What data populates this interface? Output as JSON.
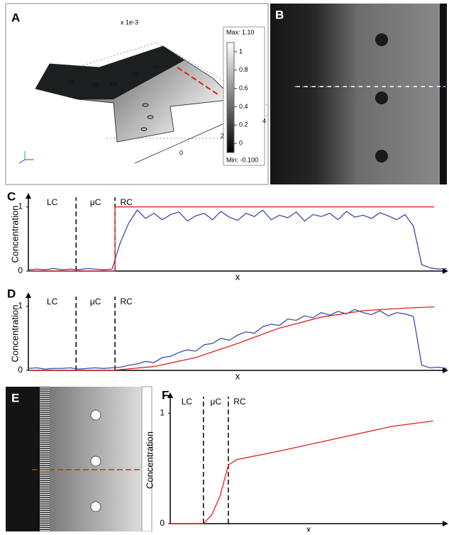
{
  "panel_a": {
    "label": "A",
    "scale_note": "x 1e-3",
    "max": "Max: 1.10",
    "min": "Min: -0.100",
    "colorbar_ticks": [
      1,
      0.8,
      0.6,
      0.4,
      0.2,
      0
    ],
    "axis_ticks": [
      0,
      2,
      4
    ]
  },
  "panel_b": {
    "label": "B"
  },
  "panel_e": {
    "label": "E"
  },
  "chart_data": [
    {
      "type": "line",
      "panel_label": "C",
      "ylabel": "Concentration",
      "xlabel": "x",
      "regions": [
        "LC",
        "μC",
        "RC"
      ],
      "boundaries": [
        11.4,
        20.7
      ],
      "xlim": [
        0,
        100
      ],
      "ylim": [
        0,
        1.15
      ],
      "yticks": [
        0,
        1
      ],
      "series": [
        {
          "color": "#3d4aa8",
          "x": [
            0,
            2,
            4,
            6,
            8,
            10,
            12,
            14,
            16,
            18,
            20,
            22,
            24,
            26,
            28,
            30,
            32,
            34,
            36,
            38,
            40,
            42,
            44,
            46,
            48,
            50,
            52,
            54,
            56,
            58,
            60,
            62,
            64,
            66,
            68,
            70,
            72,
            74,
            76,
            78,
            80,
            82,
            84,
            86,
            88,
            90,
            92,
            94,
            96,
            98,
            100
          ],
          "values": [
            0.02,
            0.03,
            0.02,
            0.04,
            0.02,
            0.03,
            0.02,
            0.04,
            0.03,
            0.02,
            0.03,
            0.45,
            0.75,
            0.95,
            0.82,
            0.9,
            0.8,
            0.88,
            0.92,
            0.78,
            0.86,
            0.9,
            0.8,
            0.93,
            0.84,
            0.79,
            0.9,
            0.85,
            0.95,
            0.8,
            0.87,
            0.83,
            0.92,
            0.78,
            0.88,
            0.85,
            0.9,
            0.8,
            0.93,
            0.84,
            0.87,
            0.82,
            0.91,
            0.86,
            0.8,
            0.88,
            0.7,
            0.1,
            0.05,
            0.03,
            0.04
          ]
        },
        {
          "color": "#e0201b",
          "x": [
            0,
            20.7,
            20.7,
            97
          ],
          "values": [
            0,
            0,
            1,
            1
          ]
        }
      ]
    },
    {
      "type": "line",
      "panel_label": "D",
      "ylabel": "Concentration",
      "xlabel": "x",
      "regions": [
        "LC",
        "μC",
        "RC"
      ],
      "boundaries": [
        11.4,
        20.7
      ],
      "xlim": [
        0,
        100
      ],
      "ylim": [
        0,
        1.15
      ],
      "yticks": [
        0,
        1
      ],
      "series": [
        {
          "color": "#3d4aa8",
          "x": [
            0,
            2,
            4,
            6,
            8,
            10,
            12,
            14,
            16,
            18,
            20,
            22,
            24,
            26,
            28,
            30,
            32,
            34,
            36,
            38,
            40,
            42,
            44,
            46,
            48,
            50,
            52,
            54,
            56,
            58,
            60,
            62,
            64,
            66,
            68,
            70,
            72,
            74,
            76,
            78,
            80,
            82,
            84,
            86,
            88,
            90,
            92,
            94,
            96,
            98,
            100
          ],
          "values": [
            0.03,
            0.04,
            0.02,
            0.03,
            0.03,
            0.04,
            0.02,
            0.03,
            0.04,
            0.03,
            0.04,
            0.05,
            0.08,
            0.1,
            0.14,
            0.12,
            0.2,
            0.22,
            0.28,
            0.32,
            0.3,
            0.4,
            0.42,
            0.5,
            0.47,
            0.55,
            0.6,
            0.58,
            0.68,
            0.72,
            0.7,
            0.8,
            0.78,
            0.85,
            0.82,
            0.9,
            0.86,
            0.92,
            0.88,
            0.95,
            0.9,
            0.87,
            0.93,
            0.85,
            0.9,
            0.88,
            0.84,
            0.08,
            0.04,
            0.05,
            0.03
          ]
        },
        {
          "color": "#e0201b",
          "x": [
            0,
            20,
            30,
            40,
            50,
            60,
            70,
            80,
            90,
            97
          ],
          "values": [
            0,
            0,
            0.06,
            0.2,
            0.42,
            0.66,
            0.83,
            0.93,
            0.97,
            0.99
          ]
        }
      ]
    },
    {
      "type": "line",
      "panel_label": "F",
      "ylabel": "Concentration",
      "xlabel": "x",
      "regions": [
        "LC",
        "μC",
        "RC"
      ],
      "boundaries": [
        12,
        21
      ],
      "xlim": [
        0,
        100
      ],
      "ylim": [
        0,
        1.15
      ],
      "yticks": [
        0,
        1
      ],
      "series": [
        {
          "color": "#e0201b",
          "x": [
            0,
            12,
            15,
            18,
            21,
            24,
            40,
            60,
            80,
            95
          ],
          "values": [
            0,
            0,
            0.08,
            0.25,
            0.53,
            0.58,
            0.66,
            0.77,
            0.88,
            0.93
          ]
        }
      ]
    }
  ]
}
